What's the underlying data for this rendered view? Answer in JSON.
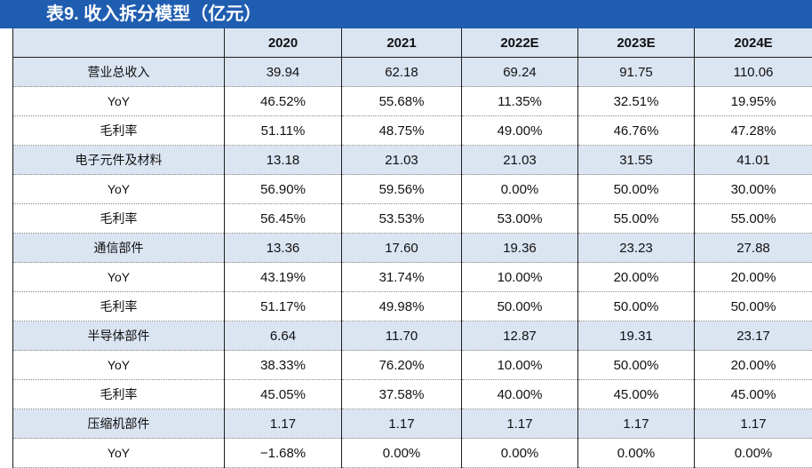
{
  "title": "表9. 收入拆分模型（亿元）",
  "header": [
    "",
    "2020",
    "2021",
    "2022E",
    "2023E",
    "2024E"
  ],
  "rows": [
    {
      "label": "营业总收入",
      "values": [
        "39.94",
        "62.18",
        "69.24",
        "91.75",
        "110.06"
      ]
    },
    {
      "label": "YoY",
      "values": [
        "46.52%",
        "55.68%",
        "11.35%",
        "32.51%",
        "19.95%"
      ]
    },
    {
      "label": "毛利率",
      "values": [
        "51.11%",
        "48.75%",
        "49.00%",
        "46.76%",
        "47.28%"
      ]
    },
    {
      "label": "电子元件及材料",
      "values": [
        "13.18",
        "21.03",
        "21.03",
        "31.55",
        "41.01"
      ]
    },
    {
      "label": "YoY",
      "values": [
        "56.90%",
        "59.56%",
        "0.00%",
        "50.00%",
        "30.00%"
      ]
    },
    {
      "label": "毛利率",
      "values": [
        "56.45%",
        "53.53%",
        "53.00%",
        "55.00%",
        "55.00%"
      ]
    },
    {
      "label": "通信部件",
      "values": [
        "13.36",
        "17.60",
        "19.36",
        "23.23",
        "27.88"
      ]
    },
    {
      "label": "YoY",
      "values": [
        "43.19%",
        "31.74%",
        "10.00%",
        "20.00%",
        "20.00%"
      ]
    },
    {
      "label": "毛利率",
      "values": [
        "51.17%",
        "49.98%",
        "50.00%",
        "50.00%",
        "50.00%"
      ]
    },
    {
      "label": "半导体部件",
      "values": [
        "6.64",
        "11.70",
        "12.87",
        "19.31",
        "23.17"
      ]
    },
    {
      "label": "YoY",
      "values": [
        "38.33%",
        "76.20%",
        "10.00%",
        "50.00%",
        "20.00%"
      ]
    },
    {
      "label": "毛利率",
      "values": [
        "45.05%",
        "37.58%",
        "40.00%",
        "45.00%",
        "45.00%"
      ]
    },
    {
      "label": "压缩机部件",
      "values": [
        "1.17",
        "1.17",
        "1.17",
        "1.17",
        "1.17"
      ]
    },
    {
      "label": "YoY",
      "values": [
        "−1.68%",
        "0.00%",
        "0.00%",
        "0.00%",
        "0.00%"
      ]
    }
  ],
  "colors": {
    "title_bg": "#1f5db0",
    "shade": "#dbe4f1"
  }
}
